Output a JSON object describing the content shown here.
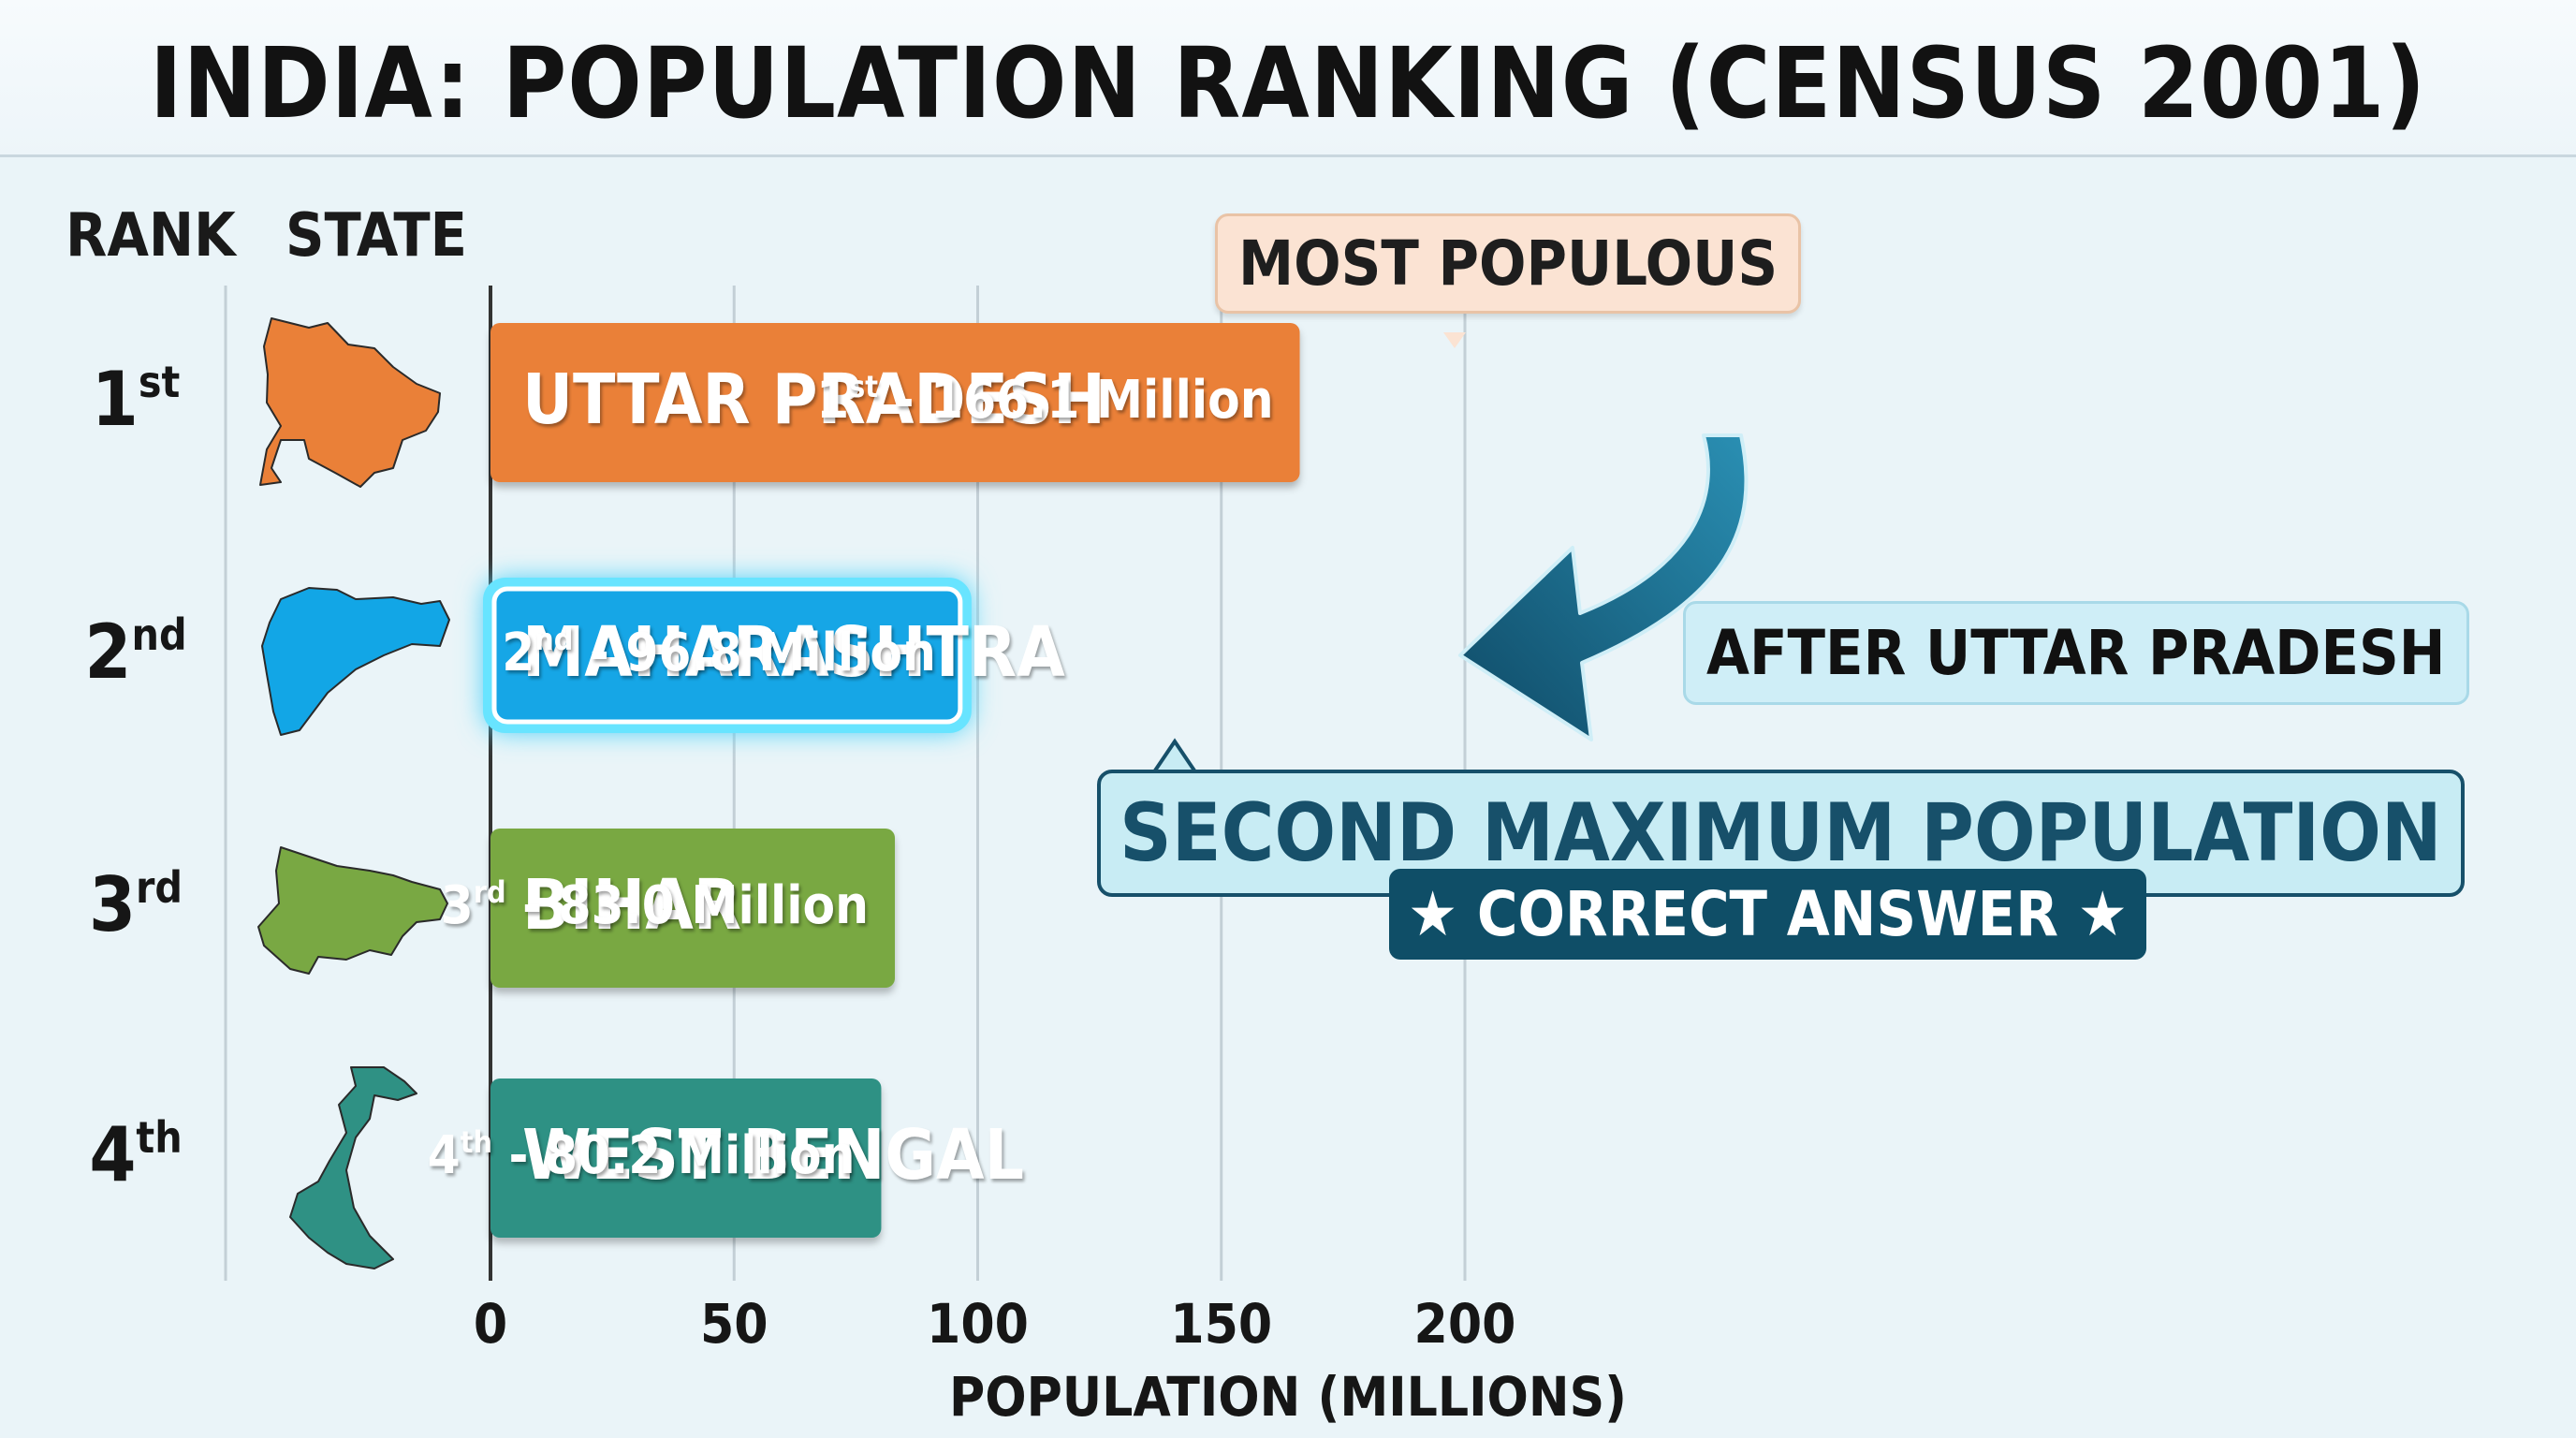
{
  "chart_data": {
    "type": "bar",
    "orientation": "horizontal",
    "title": "INDIA: POPULATION RANKING (CENSUS 2001)",
    "column_headers": {
      "rank": "RANK",
      "state": "STATE"
    },
    "xlabel": "POPULATION (MILLIONS)",
    "xlim": [
      0,
      200
    ],
    "xticks": [
      "0",
      "50",
      "100",
      "150",
      "200"
    ],
    "grid": true,
    "categories": [
      "UTTAR PRADESH",
      "MAHARASHTRA",
      "BIHAR",
      "WEST BENGAL"
    ],
    "values": [
      166.1,
      96.8,
      83.0,
      80.2
    ],
    "ranks": [
      {
        "num": "1",
        "suffix": "st"
      },
      {
        "num": "2",
        "suffix": "nd"
      },
      {
        "num": "3",
        "suffix": "rd"
      },
      {
        "num": "4",
        "suffix": "th"
      }
    ],
    "value_labels": [
      " - 166.1 Million",
      " - 96.8 Million",
      " - 83.0 Million",
      " - 80.2 Million"
    ],
    "colors": [
      "#ea8038",
      "#12a6e6",
      "#79a843",
      "#2f9184"
    ],
    "highlight_color": "#68e4ff",
    "state_icons": [
      "uttar-pradesh-map-icon",
      "maharashtra-map-icon",
      "bihar-map-icon",
      "west-bengal-map-icon"
    ],
    "annotations": {
      "most_populous": "MOST POPULOUS",
      "after": "AFTER UTTAR PRADESH",
      "second_max": "SECOND MAXIMUM POPULATION",
      "correct": "★ CORRECT ANSWER ★"
    }
  }
}
